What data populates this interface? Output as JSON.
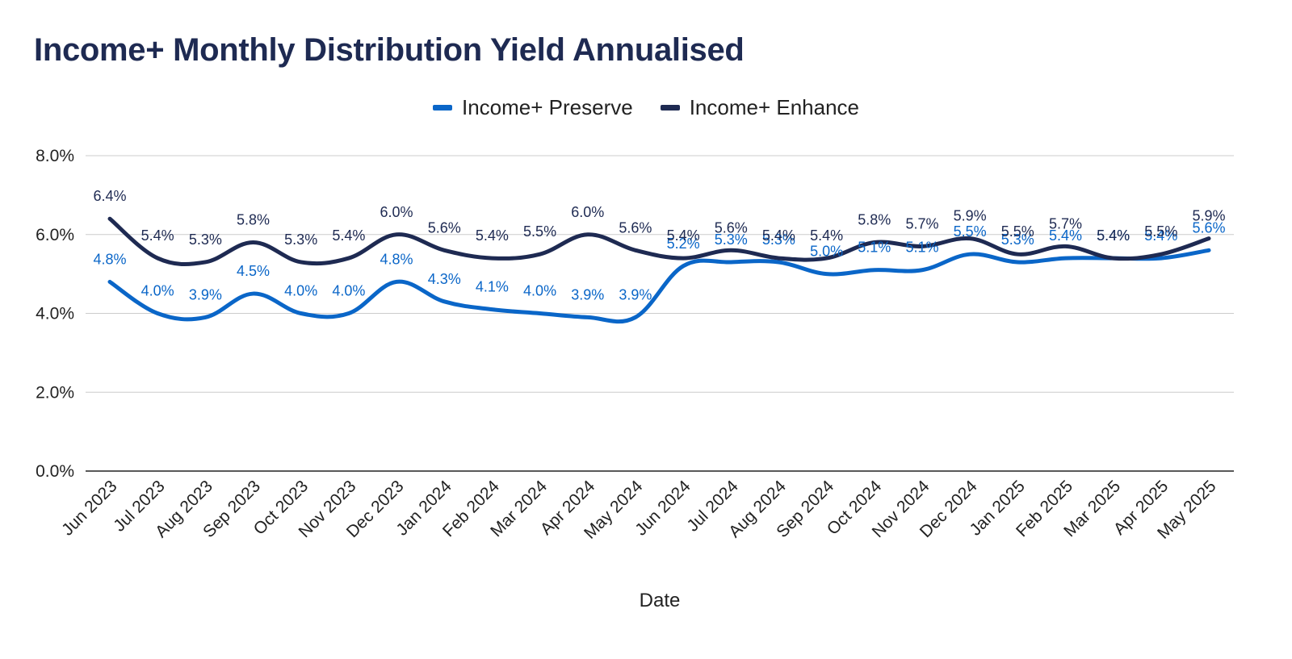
{
  "chart_data": {
    "type": "line",
    "title": "Income+ Monthly Distribution Yield Annualised",
    "xlabel": "Date",
    "ylabel": "",
    "ylim": [
      0,
      8
    ],
    "yticks": [
      "0.0%",
      "2.0%",
      "4.0%",
      "6.0%",
      "8.0%"
    ],
    "ytick_values": [
      0,
      2,
      4,
      6,
      8
    ],
    "grid": true,
    "legend_position": "top-center",
    "categories": [
      "Jun 2023",
      "Jul 2023",
      "Aug 2023",
      "Sep 2023",
      "Oct 2023",
      "Nov 2023",
      "Dec 2023",
      "Jan 2024",
      "Feb 2024",
      "Mar 2024",
      "Apr 2024",
      "May 2024",
      "Jun 2024",
      "Jul 2024",
      "Aug 2024",
      "Sep 2024",
      "Oct 2024",
      "Nov 2024",
      "Dec 2024",
      "Jan 2025",
      "Feb 2025",
      "Mar 2025",
      "Apr 2025",
      "May 2025"
    ],
    "series": [
      {
        "name": "Income+ Preserve",
        "color": "#0a66c8",
        "values": [
          4.8,
          4.0,
          3.9,
          4.5,
          4.0,
          4.0,
          4.8,
          4.3,
          4.1,
          4.0,
          3.9,
          3.9,
          5.2,
          5.3,
          5.3,
          5.0,
          5.1,
          5.1,
          5.5,
          5.3,
          5.4,
          5.4,
          5.4,
          5.6
        ],
        "labels": [
          "4.8%",
          "4.0%",
          "3.9%",
          "4.5%",
          "4.0%",
          "4.0%",
          "4.8%",
          "4.3%",
          "4.1%",
          "4.0%",
          "3.9%",
          "3.9%",
          "5.2%",
          "5.3%",
          "5.3%",
          "5.0%",
          "5.1%",
          "5.1%",
          "5.5%",
          "5.3%",
          "5.4%",
          "5.4%",
          "5.4%",
          "5.6%"
        ]
      },
      {
        "name": "Income+ Enhance",
        "color": "#1e2a52",
        "values": [
          6.4,
          5.4,
          5.3,
          5.8,
          5.3,
          5.4,
          6.0,
          5.6,
          5.4,
          5.5,
          6.0,
          5.6,
          5.4,
          5.6,
          5.4,
          5.4,
          5.8,
          5.7,
          5.9,
          5.5,
          5.7,
          5.4,
          5.5,
          5.9
        ],
        "labels": [
          "6.4%",
          "5.4%",
          "5.3%",
          "5.8%",
          "5.3%",
          "5.4%",
          "6.0%",
          "5.6%",
          "5.4%",
          "5.5%",
          "6.0%",
          "5.6%",
          "5.4%",
          "5.6%",
          "5.4%",
          "5.4%",
          "5.8%",
          "5.7%",
          "5.9%",
          "5.5%",
          "5.7%",
          "5.4%",
          "5.5%",
          "5.9%"
        ]
      }
    ]
  },
  "colors": {
    "title": "#1e2a52",
    "grid": "#cccccc",
    "axis": "#222222"
  }
}
